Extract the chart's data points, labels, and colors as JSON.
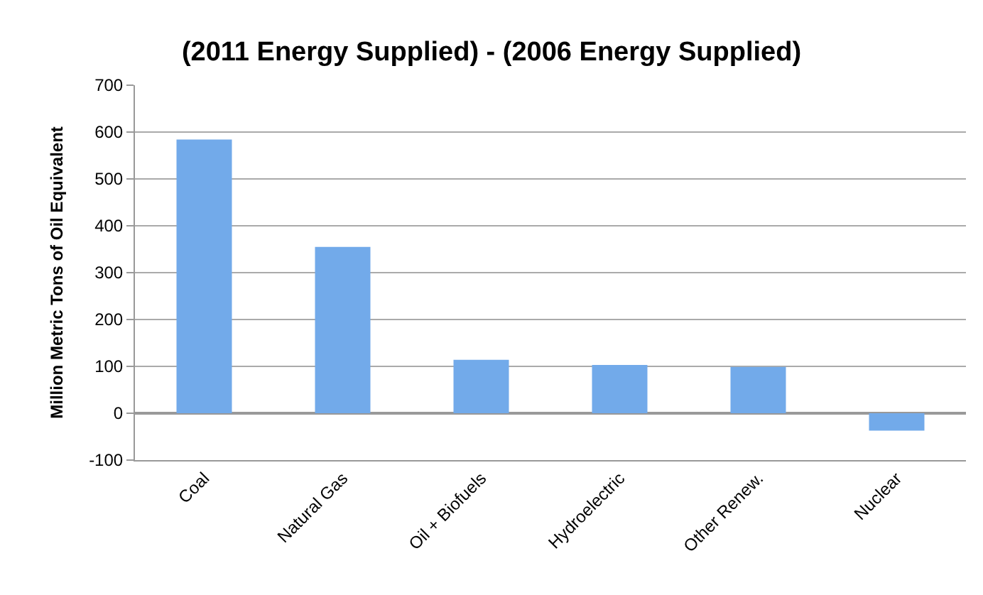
{
  "chart_data": {
    "type": "bar",
    "title": "(2011 Energy Supplied) - (2006 Energy Supplied)",
    "ylabel": "Million Metric Tons of Oil Equivalent",
    "categories": [
      "Coal",
      "Natural Gas",
      "Oil + Biofuels",
      "Hydroelectric",
      "Other Renew.",
      "Nuclear"
    ],
    "values": [
      584,
      355,
      114,
      103,
      99,
      -37
    ],
    "color": "#72aaea",
    "ylim": [
      -100,
      700
    ],
    "yticks": [
      -100,
      0,
      100,
      200,
      300,
      400,
      500,
      600,
      700
    ],
    "grid": "y",
    "legend": false
  }
}
